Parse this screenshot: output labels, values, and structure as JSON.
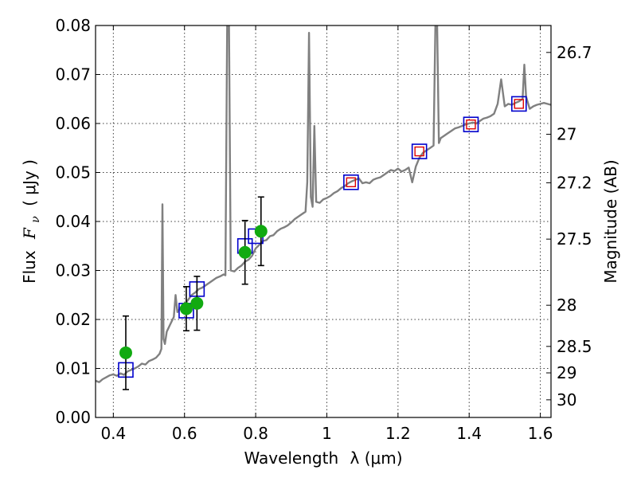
{
  "chart_data": {
    "type": "scatter",
    "x_axis": {
      "range": [
        0.35,
        1.63
      ],
      "ticks": [
        0.4,
        0.6,
        0.8,
        1.0,
        1.2,
        1.4,
        1.6
      ],
      "tick_labels": [
        "0.4",
        "0.6",
        "0.8",
        "1",
        "1.2",
        "1.4",
        "1.6"
      ],
      "label_text": "Wavelength",
      "label_symbol": "λ (μm)"
    },
    "y_axis": {
      "range": [
        0.0,
        0.08
      ],
      "ticks": [
        0.0,
        0.01,
        0.02,
        0.03,
        0.04,
        0.05,
        0.06,
        0.07,
        0.08
      ],
      "tick_labels": [
        "0.00",
        "0.01",
        "0.02",
        "0.03",
        "0.04",
        "0.05",
        "0.06",
        "0.07",
        "0.08"
      ],
      "label_text": "Flux",
      "label_symbol": "F",
      "label_subscript": "ν",
      "label_unit": "( μJy )"
    },
    "right_axis": {
      "label": "Magnitude (AB)",
      "ticks": [
        {
          "label": "26.7",
          "flux": 0.0745
        },
        {
          "label": "27",
          "flux": 0.0578
        },
        {
          "label": "27.2",
          "flux": 0.0479
        },
        {
          "label": "27.5",
          "flux": 0.0364
        },
        {
          "label": "28",
          "flux": 0.0229
        },
        {
          "label": "28.5",
          "flux": 0.0145
        },
        {
          "label": "29",
          "flux": 0.0091
        },
        {
          "label": "30",
          "flux": 0.0036
        }
      ]
    },
    "grid": true,
    "series": [
      {
        "kind": "line",
        "color": "#808080",
        "points": [
          [
            0.35,
            0.0075
          ],
          [
            0.36,
            0.0072
          ],
          [
            0.37,
            0.0078
          ],
          [
            0.38,
            0.0082
          ],
          [
            0.39,
            0.0086
          ],
          [
            0.4,
            0.0088
          ],
          [
            0.41,
            0.0085
          ],
          [
            0.42,
            0.009
          ],
          [
            0.43,
            0.0087
          ],
          [
            0.44,
            0.0094
          ],
          [
            0.45,
            0.0097
          ],
          [
            0.46,
            0.01
          ],
          [
            0.47,
            0.0104
          ],
          [
            0.48,
            0.011
          ],
          [
            0.49,
            0.0108
          ],
          [
            0.5,
            0.0115
          ],
          [
            0.51,
            0.0118
          ],
          [
            0.52,
            0.0122
          ],
          [
            0.53,
            0.013
          ],
          [
            0.535,
            0.014
          ],
          [
            0.538,
            0.0435
          ],
          [
            0.541,
            0.016
          ],
          [
            0.545,
            0.015
          ],
          [
            0.55,
            0.0175
          ],
          [
            0.56,
            0.019
          ],
          [
            0.57,
            0.0205
          ],
          [
            0.575,
            0.025
          ],
          [
            0.58,
            0.0215
          ],
          [
            0.59,
            0.0225
          ],
          [
            0.6,
            0.023
          ],
          [
            0.61,
            0.024
          ],
          [
            0.62,
            0.025
          ],
          [
            0.63,
            0.0255
          ],
          [
            0.64,
            0.0262
          ],
          [
            0.65,
            0.0265
          ],
          [
            0.66,
            0.027
          ],
          [
            0.67,
            0.0275
          ],
          [
            0.68,
            0.028
          ],
          [
            0.69,
            0.0285
          ],
          [
            0.7,
            0.0288
          ],
          [
            0.71,
            0.0292
          ],
          [
            0.715,
            0.029
          ],
          [
            0.72,
            0.08
          ],
          [
            0.725,
            0.08
          ],
          [
            0.73,
            0.03
          ],
          [
            0.74,
            0.0298
          ],
          [
            0.75,
            0.0305
          ],
          [
            0.76,
            0.031
          ],
          [
            0.77,
            0.0318
          ],
          [
            0.78,
            0.0322
          ],
          [
            0.79,
            0.033
          ],
          [
            0.8,
            0.0345
          ],
          [
            0.81,
            0.0352
          ],
          [
            0.82,
            0.036
          ],
          [
            0.83,
            0.0362
          ],
          [
            0.84,
            0.037
          ],
          [
            0.85,
            0.0372
          ],
          [
            0.86,
            0.038
          ],
          [
            0.87,
            0.0385
          ],
          [
            0.88,
            0.0388
          ],
          [
            0.89,
            0.0392
          ],
          [
            0.9,
            0.0398
          ],
          [
            0.91,
            0.0405
          ],
          [
            0.92,
            0.041
          ],
          [
            0.93,
            0.0415
          ],
          [
            0.94,
            0.042
          ],
          [
            0.945,
            0.048
          ],
          [
            0.95,
            0.0785
          ],
          [
            0.955,
            0.045
          ],
          [
            0.96,
            0.043
          ],
          [
            0.965,
            0.0595
          ],
          [
            0.97,
            0.044
          ],
          [
            0.98,
            0.0438
          ],
          [
            0.99,
            0.0445
          ],
          [
            1.0,
            0.0448
          ],
          [
            1.01,
            0.0452
          ],
          [
            1.02,
            0.0458
          ],
          [
            1.03,
            0.0462
          ],
          [
            1.04,
            0.0468
          ],
          [
            1.05,
            0.0472
          ],
          [
            1.06,
            0.0478
          ],
          [
            1.07,
            0.0482
          ],
          [
            1.08,
            0.0485
          ],
          [
            1.09,
            0.0488
          ],
          [
            1.1,
            0.0478
          ],
          [
            1.11,
            0.048
          ],
          [
            1.12,
            0.0478
          ],
          [
            1.13,
            0.0485
          ],
          [
            1.14,
            0.0488
          ],
          [
            1.15,
            0.049
          ],
          [
            1.16,
            0.0495
          ],
          [
            1.17,
            0.05
          ],
          [
            1.18,
            0.0505
          ],
          [
            1.19,
            0.0503
          ],
          [
            1.2,
            0.0508
          ],
          [
            1.21,
            0.0502
          ],
          [
            1.22,
            0.0505
          ],
          [
            1.23,
            0.051
          ],
          [
            1.24,
            0.048
          ],
          [
            1.25,
            0.0512
          ],
          [
            1.26,
            0.053
          ],
          [
            1.27,
            0.054
          ],
          [
            1.28,
            0.0545
          ],
          [
            1.29,
            0.055
          ],
          [
            1.3,
            0.0555
          ],
          [
            1.305,
            0.08
          ],
          [
            1.31,
            0.08
          ],
          [
            1.315,
            0.056
          ],
          [
            1.32,
            0.057
          ],
          [
            1.33,
            0.0575
          ],
          [
            1.34,
            0.058
          ],
          [
            1.35,
            0.0585
          ],
          [
            1.36,
            0.059
          ],
          [
            1.37,
            0.0592
          ],
          [
            1.38,
            0.0595
          ],
          [
            1.39,
            0.0598
          ],
          [
            1.4,
            0.06
          ],
          [
            1.41,
            0.0602
          ],
          [
            1.42,
            0.06
          ],
          [
            1.43,
            0.0605
          ],
          [
            1.44,
            0.061
          ],
          [
            1.45,
            0.0612
          ],
          [
            1.46,
            0.0615
          ],
          [
            1.47,
            0.062
          ],
          [
            1.48,
            0.064
          ],
          [
            1.49,
            0.069
          ],
          [
            1.5,
            0.0635
          ],
          [
            1.51,
            0.064
          ],
          [
            1.52,
            0.0638
          ],
          [
            1.53,
            0.0642
          ],
          [
            1.54,
            0.0645
          ],
          [
            1.55,
            0.065
          ],
          [
            1.555,
            0.072
          ],
          [
            1.56,
            0.0655
          ],
          [
            1.57,
            0.063
          ],
          [
            1.58,
            0.0635
          ],
          [
            1.59,
            0.0638
          ],
          [
            1.6,
            0.064
          ],
          [
            1.61,
            0.0642
          ],
          [
            1.62,
            0.064
          ],
          [
            1.63,
            0.0638
          ]
        ]
      },
      {
        "kind": "observed",
        "color": "#11aa11",
        "errcolor": "#000000",
        "points": [
          {
            "x": 0.435,
            "y": 0.0132,
            "err": 0.0075
          },
          {
            "x": 0.605,
            "y": 0.0222,
            "err": 0.0045
          },
          {
            "x": 0.635,
            "y": 0.0233,
            "err": 0.0055
          },
          {
            "x": 0.77,
            "y": 0.0337,
            "err": 0.0065
          },
          {
            "x": 0.815,
            "y": 0.038,
            "err": 0.007
          }
        ]
      },
      {
        "kind": "model_open",
        "color": "#0000cc",
        "points": [
          {
            "x": 0.435,
            "y": 0.0097
          },
          {
            "x": 0.605,
            "y": 0.0218
          },
          {
            "x": 0.635,
            "y": 0.0262
          },
          {
            "x": 0.77,
            "y": 0.035
          },
          {
            "x": 0.8,
            "y": 0.037
          },
          {
            "x": 1.068,
            "y": 0.048
          },
          {
            "x": 1.26,
            "y": 0.0543
          },
          {
            "x": 1.405,
            "y": 0.0598
          },
          {
            "x": 1.54,
            "y": 0.064
          }
        ]
      },
      {
        "kind": "model_inner",
        "color": "#dd0000",
        "points": [
          {
            "x": 1.068,
            "y": 0.048
          },
          {
            "x": 1.26,
            "y": 0.0543
          },
          {
            "x": 1.405,
            "y": 0.0598
          },
          {
            "x": 1.54,
            "y": 0.064
          }
        ]
      }
    ]
  }
}
